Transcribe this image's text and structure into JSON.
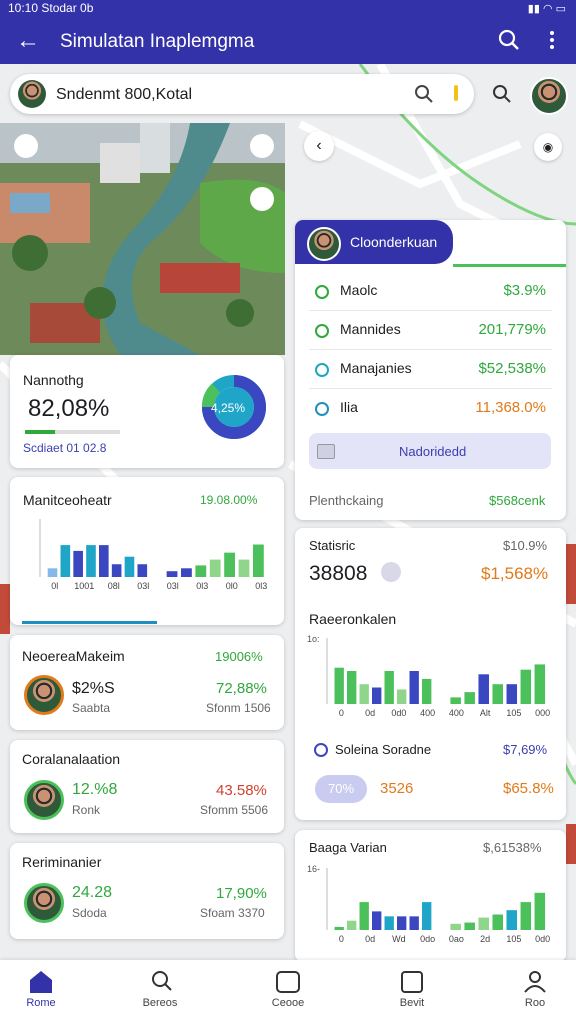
{
  "status_bar": {
    "time": "10:10 Stodar 0b"
  },
  "app_bar": {
    "title": "Simulatan Inaplemgma"
  },
  "search": {
    "placeholder": "Sndenmt 800,Kotal"
  },
  "left_cards": [
    {
      "title": "Nannothg",
      "value": "82,08%",
      "sub": "Scdiaet 01 02.8",
      "donut": "4,25%"
    },
    {
      "title": "Manitceoheatr",
      "value": "19.08.00%",
      "chart": {
        "series": [
          {
            "values": [
              15,
              55,
              45,
              55,
              55,
              22,
              35,
              22
            ],
            "colors": [
              "#86b9ea",
              "#1ea5c8",
              "#3b47c0",
              "#1ea5c8",
              "#3b47c0",
              "#3b47c0",
              "#1ea5c8",
              "#3b47c0"
            ]
          },
          {
            "values": [
              10,
              15,
              20,
              30,
              42,
              30,
              56
            ],
            "colors": [
              "#3b47c0",
              "#3b47c0",
              "#4cc05a",
              "#8fd68a",
              "#4cc05a",
              "#8fd68a",
              "#4cc05a"
            ]
          }
        ],
        "labels": [
          "0l",
          "1001",
          "08l",
          "03l",
          "03l",
          "0l3",
          "0l0",
          "0l3"
        ]
      }
    },
    {
      "title": "NeoereaMakeim",
      "value": "19006%",
      "left_value": "$2%S",
      "left_sub": "Saabta",
      "right_value": "72,88%",
      "right_sub": "Sfonm 1506"
    },
    {
      "title": "Coralanalaation",
      "left_value": "12.%8",
      "left_sub": "Ronk",
      "right_value": "43.58%",
      "right_sub": "Sfomm 5506"
    },
    {
      "title": "Reriminanier",
      "left_value": "24.28",
      "left_sub": "Sdoda",
      "right_value": "17,90%",
      "right_sub": "Sfoam 3370"
    }
  ],
  "panel": {
    "header": "Cloonderkuan",
    "rows": [
      {
        "label": "Maolc",
        "value": "$3.9%"
      },
      {
        "label": "Mannides",
        "value": "201,779%"
      },
      {
        "label": "Manajanies",
        "value": "$52,538%"
      },
      {
        "label": "Ilia",
        "value": "11,368.0%"
      }
    ],
    "button": "Nadoridedd",
    "footer_label": "Plenthckaing",
    "footer_value": "$568cenk"
  },
  "stats_card": {
    "title": "Statisric",
    "title_value": "$10.9%",
    "big_value": "38808",
    "big_value_2": "$1,568%",
    "chart_title": "Raeeronkalen",
    "chart": {
      "axis_label": "1o:",
      "series": [
        {
          "values": [
            55,
            50,
            30,
            25,
            50,
            22,
            50,
            38
          ],
          "colors": [
            "#4cc05a",
            "#4cc05a",
            "#8fd68a",
            "#3b47c0",
            "#4cc05a",
            "#8fd68a",
            "#3b47c0",
            "#4cc05a"
          ]
        },
        {
          "values": [
            10,
            18,
            45,
            30,
            30,
            52,
            60
          ],
          "colors": [
            "#4cc05a",
            "#4cc05a",
            "#3b47c0",
            "#4cc05a",
            "#3b47c0",
            "#4cc05a",
            "#4cc05a"
          ]
        }
      ],
      "labels": [
        "0",
        "0d",
        "0d0",
        "400",
        "400",
        "Alt",
        "105",
        "000"
      ]
    },
    "row_label": "Soleina Soradne",
    "row_value": "$7,69%",
    "chip": "70%",
    "chip_value": "3526",
    "chip_value_2": "$65.8%"
  },
  "variant_card": {
    "title": "Baaga Varian",
    "value": "$,61538%",
    "chart": {
      "axis_label": "16-",
      "series": [
        {
          "values": [
            5,
            15,
            45,
            30,
            22,
            22,
            22,
            45
          ],
          "colors": [
            "#4cc05a",
            "#8fd68a",
            "#4cc05a",
            "#3b47c0",
            "#1ea5c8",
            "#3b47c0",
            "#3b47c0",
            "#1ea5c8"
          ]
        },
        {
          "values": [
            10,
            12,
            20,
            25,
            32,
            45,
            60
          ],
          "colors": [
            "#8fd68a",
            "#4cc05a",
            "#8fd68a",
            "#4cc05a",
            "#1ea5c8",
            "#4cc05a",
            "#4cc05a"
          ]
        }
      ],
      "labels": [
        "0",
        "0d",
        "Wd",
        "0do",
        "0ao",
        "2d",
        "105",
        "0d0"
      ]
    }
  },
  "nav": [
    "Rome",
    "Bereos",
    "Ceooe",
    "Bevit",
    "Roo"
  ]
}
